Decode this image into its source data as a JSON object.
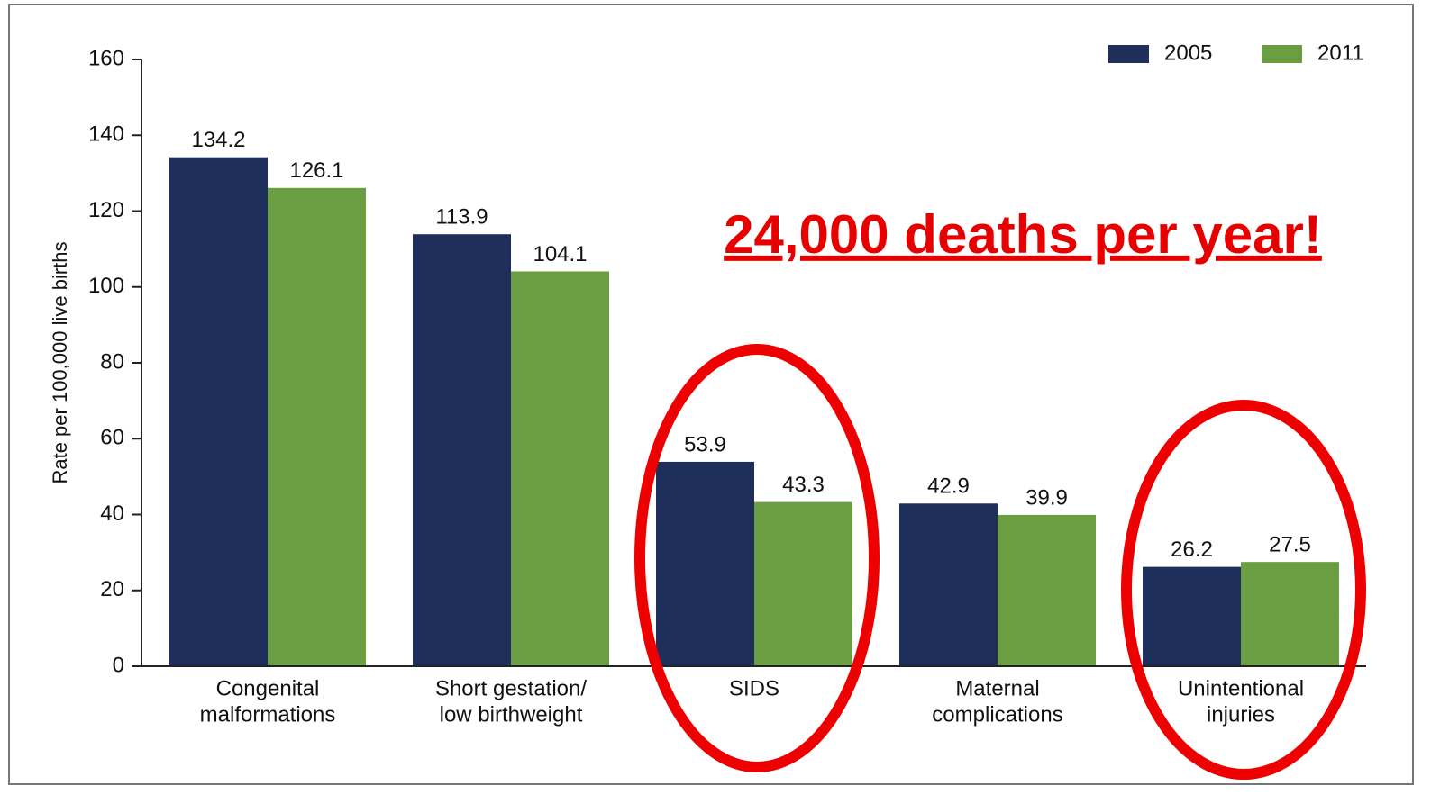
{
  "chart_data": {
    "type": "bar",
    "y_label": "Rate per 100,000 live births",
    "annotation": "24,000 deaths per year!",
    "categories": [
      [
        "Congenital",
        "malformations"
      ],
      [
        "Short gestation/",
        "low birthweight"
      ],
      [
        "SIDS"
      ],
      [
        "Maternal",
        "complications"
      ],
      [
        "Unintentional",
        "injuries"
      ]
    ],
    "series": [
      {
        "name": "2005",
        "color": "#1d2f5a",
        "values": [
          134.2,
          113.9,
          53.9,
          42.9,
          26.2
        ]
      },
      {
        "name": "2011",
        "color": "#6b9d42",
        "values": [
          126.1,
          104.1,
          43.3,
          39.9,
          27.5
        ]
      }
    ],
    "ylim": [
      0,
      160
    ],
    "yticks": [
      0,
      20,
      40,
      60,
      80,
      100,
      120,
      140,
      160
    ],
    "grid": false,
    "legend": "top-right"
  }
}
